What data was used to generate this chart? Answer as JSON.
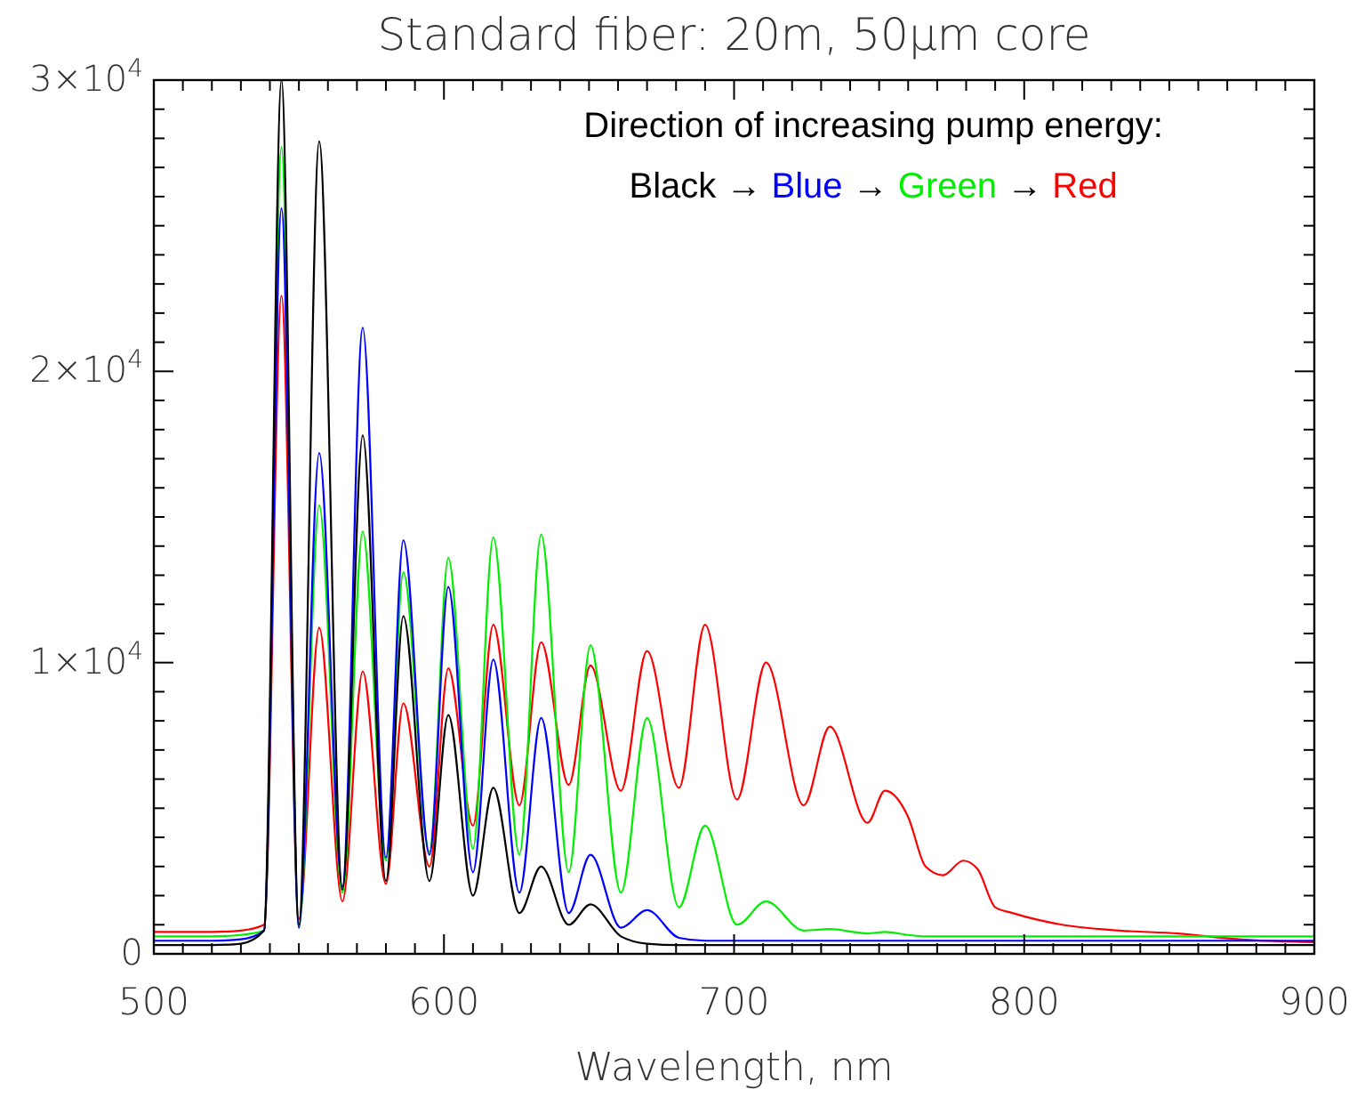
{
  "chart_data": {
    "type": "line",
    "title": "Standard fiber: 20m, 50μm core",
    "xlabel": "Wavelength, nm",
    "legend_title": "Direction of increasing pump energy:",
    "annotations": [
      "→"
    ],
    "legend": "top right",
    "marker": "none",
    "line_style": "solid",
    "grid": false,
    "x": [
      500,
      520,
      530,
      538,
      544,
      550,
      557,
      565,
      572,
      580,
      586,
      595,
      601.5,
      610,
      617,
      626,
      633.5,
      643,
      650.5,
      661,
      670,
      681,
      690,
      701,
      711,
      724,
      733,
      746,
      752,
      760,
      766,
      772,
      779,
      784,
      790,
      796,
      813,
      833,
      853,
      874,
      900
    ],
    "xlim": [
      500,
      900
    ],
    "ylim": [
      0,
      30000
    ],
    "xticks": [
      500,
      {
        "value": 510,
        "label": null
      },
      {
        "value": 520,
        "label": null
      },
      {
        "value": 530,
        "label": null
      },
      {
        "value": 540,
        "label": null
      },
      {
        "value": 550,
        "label": null
      },
      {
        "value": 560,
        "label": null
      },
      {
        "value": 570,
        "label": null
      },
      {
        "value": 580,
        "label": null
      },
      {
        "value": 590,
        "label": null
      },
      600,
      {
        "value": 610,
        "label": null
      },
      {
        "value": 620,
        "label": null
      },
      {
        "value": 630,
        "label": null
      },
      {
        "value": 640,
        "label": null
      },
      {
        "value": 650,
        "label": null
      },
      {
        "value": 660,
        "label": null
      },
      {
        "value": 670,
        "label": null
      },
      {
        "value": 680,
        "label": null
      },
      {
        "value": 690,
        "label": null
      },
      700,
      {
        "value": 710,
        "label": null
      },
      {
        "value": 720,
        "label": null
      },
      {
        "value": 730,
        "label": null
      },
      {
        "value": 740,
        "label": null
      },
      {
        "value": 750,
        "label": null
      },
      {
        "value": 760,
        "label": null
      },
      {
        "value": 770,
        "label": null
      },
      {
        "value": 780,
        "label": null
      },
      {
        "value": 790,
        "label": null
      },
      800,
      {
        "value": 810,
        "label": null
      },
      {
        "value": 820,
        "label": null
      },
      {
        "value": 830,
        "label": null
      },
      {
        "value": 840,
        "label": null
      },
      {
        "value": 850,
        "label": null
      },
      {
        "value": 860,
        "label": null
      },
      {
        "value": 870,
        "label": null
      },
      {
        "value": 880,
        "label": null
      },
      {
        "value": 890,
        "label": null
      },
      900
    ],
    "yticks": [
      0,
      {
        "value": 1000,
        "label": null
      },
      {
        "value": 2000,
        "label": null
      },
      {
        "value": 3000,
        "label": null
      },
      {
        "value": 4000,
        "label": null
      },
      {
        "value": 5000,
        "label": null
      },
      {
        "value": 6000,
        "label": null
      },
      {
        "value": 7000,
        "label": null
      },
      {
        "value": 8000,
        "label": null
      },
      {
        "value": 9000,
        "label": null
      },
      {
        "value": 10000,
        "label": "1×10$^{4}$"
      },
      {
        "value": 11000,
        "label": null
      },
      {
        "value": 12000,
        "label": null
      },
      {
        "value": 13000,
        "label": null
      },
      {
        "value": 14000,
        "label": null
      },
      {
        "value": 15000,
        "label": null
      },
      {
        "value": 16000,
        "label": null
      },
      {
        "value": 17000,
        "label": null
      },
      {
        "value": 18000,
        "label": null
      },
      {
        "value": 19000,
        "label": null
      },
      {
        "value": 20000,
        "label": "2×10$^{4}$"
      },
      {
        "value": 21000,
        "label": null
      },
      {
        "value": 22000,
        "label": null
      },
      {
        "value": 23000,
        "label": null
      },
      {
        "value": 24000,
        "label": null
      },
      {
        "value": 25000,
        "label": null
      },
      {
        "value": 26000,
        "label": null
      },
      {
        "value": 27000,
        "label": null
      },
      {
        "value": 28000,
        "label": null
      },
      {
        "value": 29000,
        "label": null
      },
      {
        "value": 30000,
        "label": "3×10$^{4}$"
      }
    ],
    "series": [
      {
        "name": "Red",
        "color": "#ff0000",
        "values": [
          750,
          750,
          800,
          1000,
          22600,
          1200,
          11200,
          1800,
          9700,
          2400,
          8600,
          3000,
          9800,
          4400,
          11300,
          5100,
          10700,
          5800,
          9900,
          5600,
          10400,
          5700,
          11300,
          5300,
          10000,
          5100,
          7800,
          4500,
          5600,
          4700,
          3000,
          2700,
          3200,
          2900,
          1600,
          1400,
          1000,
          800,
          700,
          500,
          400
        ]
      },
      {
        "name": "Green",
        "color": "#00ee00",
        "values": [
          600,
          600,
          650,
          800,
          27700,
          900,
          15400,
          2100,
          14500,
          3200,
          13100,
          3500,
          13600,
          3600,
          14300,
          3400,
          14400,
          2800,
          10600,
          2100,
          8100,
          1600,
          4400,
          1000,
          1800,
          800,
          850,
          700,
          750,
          650,
          600,
          600,
          600,
          600,
          600,
          600,
          600,
          600,
          600,
          600,
          600
        ]
      },
      {
        "name": "Blue",
        "color": "#0000ff",
        "values": [
          450,
          450,
          500,
          800,
          25600,
          900,
          17200,
          2300,
          21500,
          3300,
          14200,
          3400,
          12600,
          2800,
          10100,
          2100,
          8100,
          1400,
          3400,
          900,
          1500,
          550,
          450,
          450,
          450,
          450,
          450,
          450,
          450,
          450,
          450,
          450,
          450,
          450,
          450,
          450,
          450,
          450,
          450,
          450,
          450
        ]
      },
      {
        "name": "Black",
        "color": "#000000",
        "values": [
          300,
          300,
          350,
          800,
          30000,
          1000,
          27900,
          2200,
          17800,
          2500,
          11600,
          2500,
          8200,
          2000,
          5700,
          1400,
          3000,
          1000,
          1700,
          600,
          350,
          300,
          300,
          300,
          300,
          300,
          300,
          300,
          300,
          300,
          300,
          300,
          300,
          300,
          300,
          300,
          300,
          300,
          300,
          300,
          300
        ]
      }
    ]
  }
}
